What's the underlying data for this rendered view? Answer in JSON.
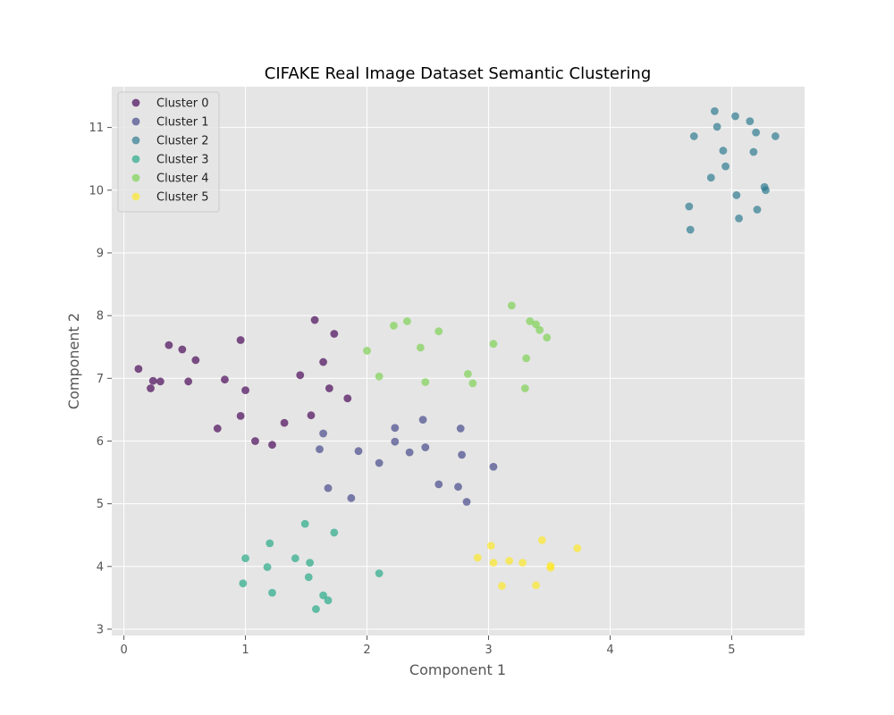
{
  "chart_data": {
    "type": "scatter",
    "title": "CIFAKE Real Image Dataset Semantic Clustering",
    "xlabel": "Component 1",
    "ylabel": "Component 2",
    "xlim": [
      -0.1,
      5.6
    ],
    "ylim": [
      2.9,
      11.65
    ],
    "x_ticks": [
      0,
      1,
      2,
      3,
      4,
      5
    ],
    "y_ticks": [
      3,
      4,
      5,
      6,
      7,
      8,
      9,
      10,
      11
    ],
    "grid": true,
    "legend_position": "top-left",
    "background": "#e5e5e5",
    "series": [
      {
        "name": "Cluster 0",
        "color": "#440154",
        "points": [
          [
            0.12,
            7.15
          ],
          [
            0.22,
            6.84
          ],
          [
            0.24,
            6.96
          ],
          [
            0.3,
            6.95
          ],
          [
            0.37,
            7.53
          ],
          [
            0.48,
            7.46
          ],
          [
            0.53,
            6.95
          ],
          [
            0.59,
            7.29
          ],
          [
            0.77,
            6.2
          ],
          [
            0.83,
            6.98
          ],
          [
            0.96,
            7.61
          ],
          [
            0.96,
            6.4
          ],
          [
            1.0,
            6.81
          ],
          [
            1.08,
            6.0
          ],
          [
            1.22,
            5.94
          ],
          [
            1.32,
            6.29
          ],
          [
            1.45,
            7.05
          ],
          [
            1.54,
            6.41
          ],
          [
            1.57,
            7.93
          ],
          [
            1.64,
            7.26
          ],
          [
            1.69,
            6.84
          ],
          [
            1.73,
            7.71
          ],
          [
            1.84,
            6.68
          ]
        ]
      },
      {
        "name": "Cluster 1",
        "color": "#414487",
        "points": [
          [
            1.61,
            5.87
          ],
          [
            1.64,
            6.12
          ],
          [
            1.68,
            5.25
          ],
          [
            1.87,
            5.09
          ],
          [
            1.93,
            5.84
          ],
          [
            2.1,
            5.65
          ],
          [
            2.23,
            6.21
          ],
          [
            2.23,
            5.99
          ],
          [
            2.35,
            5.82
          ],
          [
            2.46,
            6.34
          ],
          [
            2.48,
            5.9
          ],
          [
            2.59,
            5.31
          ],
          [
            2.75,
            5.27
          ],
          [
            2.77,
            6.2
          ],
          [
            2.78,
            5.78
          ],
          [
            2.82,
            5.03
          ],
          [
            3.04,
            5.59
          ]
        ]
      },
      {
        "name": "Cluster 2",
        "color": "#2a788e",
        "points": [
          [
            4.65,
            9.74
          ],
          [
            4.66,
            9.37
          ],
          [
            4.69,
            10.86
          ],
          [
            4.83,
            10.2
          ],
          [
            4.86,
            11.26
          ],
          [
            4.88,
            11.01
          ],
          [
            4.93,
            10.63
          ],
          [
            4.95,
            10.38
          ],
          [
            5.03,
            11.18
          ],
          [
            5.04,
            9.92
          ],
          [
            5.06,
            9.55
          ],
          [
            5.15,
            11.1
          ],
          [
            5.18,
            10.61
          ],
          [
            5.2,
            10.92
          ],
          [
            5.21,
            9.69
          ],
          [
            5.27,
            10.05
          ],
          [
            5.28,
            10.0
          ],
          [
            5.36,
            10.86
          ]
        ]
      },
      {
        "name": "Cluster 3",
        "color": "#22a884",
        "points": [
          [
            0.98,
            3.73
          ],
          [
            1.0,
            4.13
          ],
          [
            1.18,
            3.99
          ],
          [
            1.2,
            4.37
          ],
          [
            1.22,
            3.58
          ],
          [
            1.41,
            4.13
          ],
          [
            1.49,
            4.68
          ],
          [
            1.52,
            3.83
          ],
          [
            1.53,
            4.06
          ],
          [
            1.58,
            3.32
          ],
          [
            1.64,
            3.54
          ],
          [
            1.68,
            3.46
          ],
          [
            1.73,
            4.54
          ],
          [
            2.1,
            3.89
          ]
        ]
      },
      {
        "name": "Cluster 4",
        "color": "#7ad151",
        "points": [
          [
            2.0,
            7.44
          ],
          [
            2.1,
            7.03
          ],
          [
            2.22,
            7.84
          ],
          [
            2.33,
            7.91
          ],
          [
            2.44,
            7.49
          ],
          [
            2.48,
            6.94
          ],
          [
            2.59,
            7.75
          ],
          [
            2.83,
            7.07
          ],
          [
            2.87,
            6.92
          ],
          [
            3.04,
            7.55
          ],
          [
            3.19,
            8.16
          ],
          [
            3.3,
            6.84
          ],
          [
            3.31,
            7.32
          ],
          [
            3.34,
            7.91
          ],
          [
            3.39,
            7.86
          ],
          [
            3.42,
            7.77
          ],
          [
            3.48,
            7.65
          ]
        ]
      },
      {
        "name": "Cluster 5",
        "color": "#fde725",
        "points": [
          [
            2.91,
            4.14
          ],
          [
            3.02,
            4.33
          ],
          [
            3.04,
            4.06
          ],
          [
            3.11,
            3.69
          ],
          [
            3.17,
            4.09
          ],
          [
            3.28,
            4.06
          ],
          [
            3.39,
            3.7
          ],
          [
            3.44,
            4.42
          ],
          [
            3.51,
            4.01
          ],
          [
            3.51,
            3.98
          ],
          [
            3.73,
            4.29
          ]
        ]
      }
    ]
  }
}
